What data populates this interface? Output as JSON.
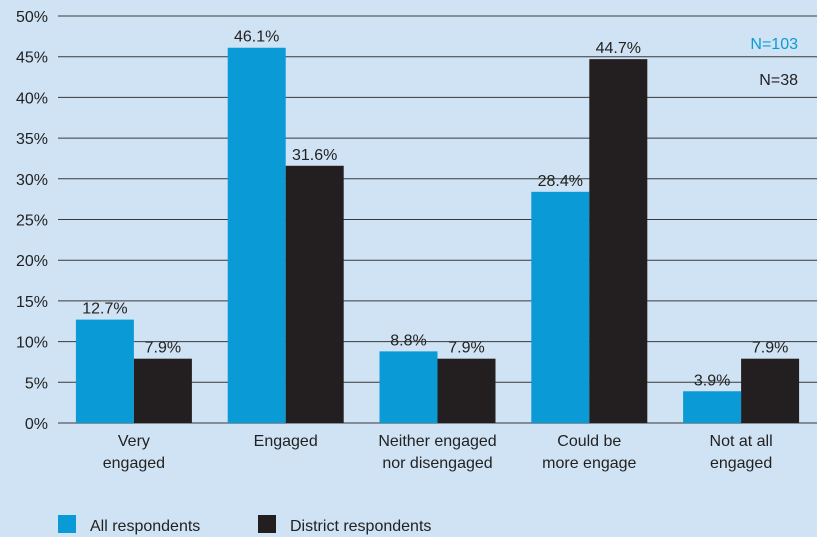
{
  "chart_data": {
    "type": "bar",
    "categories": [
      [
        "Very",
        "engaged"
      ],
      [
        "Engaged"
      ],
      [
        "Neither engaged",
        "nor disengaged"
      ],
      [
        "Could be",
        "more engage"
      ],
      [
        "Not at all",
        "engaged"
      ]
    ],
    "series": [
      {
        "name": "All respondents",
        "color": "#0a9bd7",
        "values": [
          12.7,
          46.1,
          8.8,
          28.4,
          3.9
        ],
        "labels": [
          "12.7%",
          "46.1%",
          "8.8%",
          "28.4%",
          "3.9%"
        ]
      },
      {
        "name": "District respondents",
        "color": "#231f20",
        "values": [
          7.9,
          31.6,
          7.9,
          44.7,
          7.9
        ],
        "labels": [
          "7.9%",
          "31.6%",
          "7.9%",
          "44.7%",
          "7.9%"
        ]
      }
    ],
    "ylim": [
      0,
      50
    ],
    "yticks": [
      0,
      5,
      10,
      15,
      20,
      25,
      30,
      35,
      40,
      45,
      50
    ],
    "ytick_labels": [
      "0%",
      "5%",
      "10%",
      "15%",
      "20%",
      "25%",
      "30%",
      "35%",
      "40%",
      "45%",
      "50%"
    ],
    "grid": true,
    "legend_position": "bottom-left",
    "annotations": [
      {
        "text": "N=103",
        "color": "#0a9bd7"
      },
      {
        "text": "N=38",
        "color": "#231f20"
      }
    ]
  }
}
